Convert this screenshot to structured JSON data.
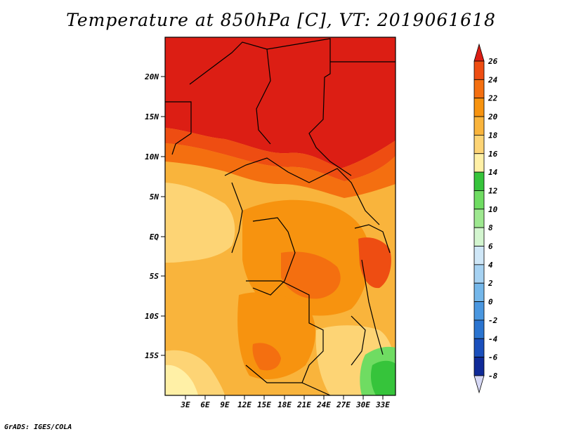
{
  "title": "Temperature at 850hPa [C], VT: 2019061618",
  "credit": "GrADS: IGES/COLA",
  "lat_labels": [
    "20N",
    "15N",
    "10N",
    "5N",
    "EQ",
    "5S",
    "10S",
    "15S"
  ],
  "lon_labels": [
    "3E",
    "6E",
    "9E",
    "12E",
    "15E",
    "18E",
    "21E",
    "24E",
    "27E",
    "30E",
    "33E"
  ],
  "colorbar": {
    "labels": [
      "26",
      "24",
      "22",
      "20",
      "18",
      "16",
      "14",
      "12",
      "10",
      "8",
      "6",
      "4",
      "2",
      "0",
      "-2",
      "-4",
      "-6",
      "-8"
    ],
    "colors": [
      "#dc1e14",
      "#ee4d12",
      "#f46f10",
      "#f7930f",
      "#f9b43c",
      "#fdd475",
      "#fff0a6",
      "#36c43b",
      "#6fdc62",
      "#9ee890",
      "#d3f5cf",
      "#cfe7f7",
      "#a6d2f2",
      "#74b7ea",
      "#4a97e0",
      "#2a74d0",
      "#1a4fbc",
      "#0f2a98",
      "#081670"
    ],
    "over_color": "#dc1e14",
    "under_color": "#d7d9f6"
  }
}
